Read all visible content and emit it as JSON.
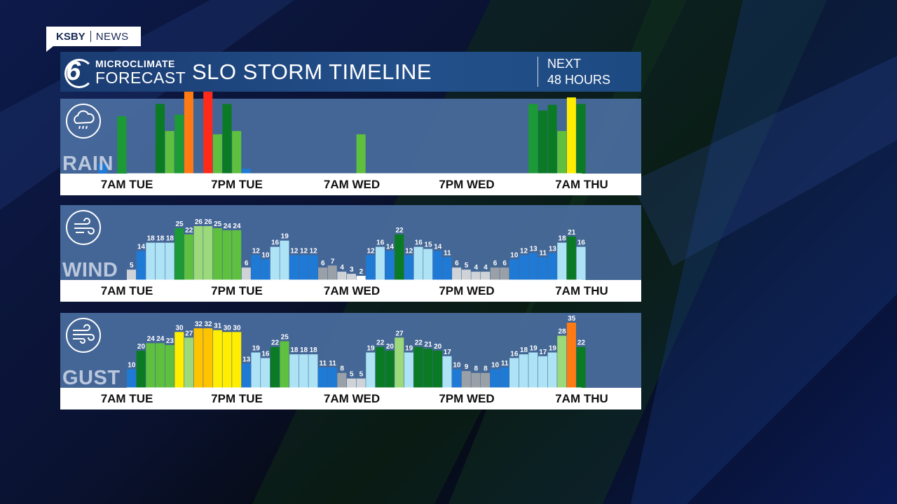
{
  "brand": {
    "station": "KSBY",
    "section": "NEWS"
  },
  "header": {
    "logo_line1": "MICROCLIMATE",
    "logo_line2": "FORECAST",
    "logo_number": "6",
    "title": "SLO STORM TIMELINE",
    "next_line1": "NEXT",
    "next_line2": "48 HOURS"
  },
  "time_axis": [
    "7AM TUE",
    "7PM TUE",
    "7AM WED",
    "7PM WED",
    "7AM THU"
  ],
  "colors": {
    "panel_bg": "#4a6ea0",
    "lightblue": "#aee3f5",
    "blue": "#1f7ad6",
    "gray": "#9aa0a8",
    "lightgray": "#cfd3d8",
    "white": "#ffffff",
    "darkgreen": "#0a7a25",
    "green": "#1c9a35",
    "midgreen": "#5fbf3e",
    "lightgreen": "#9bd97a",
    "yellow": "#ffee00",
    "gold": "#ffc400",
    "orange": "#ff7a12",
    "red": "#ff2a1a"
  },
  "chart_data": [
    {
      "name": "RAIN",
      "type": "bar",
      "icon": "rain-cloud-icon",
      "note": "no numeric labels shown; values are relative bar heights (0-100)",
      "values": [
        0,
        0,
        0,
        12,
        0,
        70,
        0,
        0,
        0,
        85,
        52,
        72,
        100,
        0,
        100,
        48,
        85,
        52,
        6,
        0,
        0,
        0,
        0,
        0,
        0,
        0,
        0,
        0,
        0,
        0,
        48,
        0,
        0,
        0,
        0,
        0,
        0,
        0,
        0,
        0,
        0,
        0,
        0,
        0,
        0,
        0,
        0,
        0,
        85,
        77,
        84,
        52,
        93,
        85
      ],
      "colors": [
        "darkgreen",
        "darkgreen",
        "darkgreen",
        "blue",
        "darkgreen",
        "green",
        "darkgreen",
        "darkgreen",
        "darkgreen",
        "darkgreen",
        "midgreen",
        "green",
        "orange",
        "darkgreen",
        "red",
        "midgreen",
        "darkgreen",
        "midgreen",
        "blue",
        "blue",
        "blue",
        "blue",
        "blue",
        "blue",
        "blue",
        "blue",
        "blue",
        "blue",
        "blue",
        "blue",
        "midgreen",
        "blue",
        "blue",
        "blue",
        "blue",
        "blue",
        "blue",
        "blue",
        "blue",
        "blue",
        "blue",
        "blue",
        "blue",
        "blue",
        "blue",
        "blue",
        "blue",
        "blue",
        "green",
        "darkgreen",
        "darkgreen",
        "midgreen",
        "yellow",
        "darkgreen"
      ]
    },
    {
      "name": "WIND",
      "type": "bar",
      "icon": "wind-icon",
      "values": [
        5,
        14,
        18,
        18,
        18,
        25,
        22,
        26,
        26,
        25,
        24,
        24,
        6,
        12,
        10,
        16,
        19,
        12,
        12,
        12,
        6,
        7,
        4,
        3,
        2,
        12,
        16,
        14,
        22,
        12,
        16,
        15,
        14,
        11,
        6,
        5,
        4,
        4,
        6,
        6,
        10,
        12,
        13,
        11,
        13,
        18,
        21,
        16
      ],
      "labels": [
        "5",
        "14",
        "18",
        "18",
        "18",
        "25",
        "22",
        "26",
        "26",
        "25",
        "24",
        "24",
        "6",
        "12",
        "10",
        "16",
        "19",
        "12",
        "12",
        "12",
        "6",
        "7",
        "4",
        "3",
        "2",
        "12",
        "16",
        "14",
        "22",
        "12",
        "16",
        "15",
        "14",
        "11",
        "6",
        "5",
        "4",
        "4",
        "6",
        "6",
        "10",
        "12",
        "13",
        "11",
        "13",
        "18",
        "21",
        "16"
      ],
      "colors": [
        "lightgray",
        "blue",
        "lightblue",
        "lightblue",
        "lightblue",
        "green",
        "midgreen",
        "lightgreen",
        "lightgreen",
        "midgreen",
        "midgreen",
        "midgreen",
        "lightgray",
        "blue",
        "blue",
        "lightblue",
        "lightblue",
        "blue",
        "blue",
        "blue",
        "gray",
        "gray",
        "lightgray",
        "lightgray",
        "white",
        "blue",
        "lightblue",
        "blue",
        "darkgreen",
        "blue",
        "lightblue",
        "lightblue",
        "blue",
        "blue",
        "lightgray",
        "lightgray",
        "lightgray",
        "lightgray",
        "gray",
        "gray",
        "blue",
        "blue",
        "blue",
        "blue",
        "blue",
        "lightblue",
        "darkgreen",
        "lightblue"
      ]
    },
    {
      "name": "GUST",
      "type": "bar",
      "icon": "gust-icon",
      "values": [
        10,
        20,
        24,
        24,
        23,
        30,
        27,
        32,
        32,
        31,
        30,
        30,
        13,
        19,
        16,
        22,
        25,
        18,
        18,
        18,
        11,
        11,
        8,
        5,
        5,
        19,
        22,
        20,
        27,
        19,
        22,
        21,
        20,
        17,
        10,
        9,
        8,
        8,
        10,
        11,
        16,
        18,
        19,
        17,
        19,
        28,
        35,
        22
      ],
      "labels": [
        "10",
        "20",
        "24",
        "24",
        "23",
        "30",
        "27",
        "32",
        "32",
        "31",
        "30",
        "30",
        "13",
        "19",
        "16",
        "22",
        "25",
        "18",
        "18",
        "18",
        "11",
        "11",
        "8",
        "5",
        "5",
        "19",
        "22",
        "20",
        "27",
        "19",
        "22",
        "21",
        "20",
        "17",
        "10",
        "9",
        "8",
        "8",
        "10",
        "11",
        "16",
        "18",
        "19",
        "17",
        "19",
        "28",
        "35",
        "22"
      ],
      "colors": [
        "blue",
        "darkgreen",
        "midgreen",
        "midgreen",
        "midgreen",
        "yellow",
        "lightgreen",
        "gold",
        "gold",
        "yellow",
        "yellow",
        "yellow",
        "blue",
        "lightblue",
        "lightblue",
        "darkgreen",
        "midgreen",
        "lightblue",
        "lightblue",
        "lightblue",
        "blue",
        "blue",
        "gray",
        "lightgray",
        "lightgray",
        "lightblue",
        "darkgreen",
        "darkgreen",
        "lightgreen",
        "lightblue",
        "darkgreen",
        "darkgreen",
        "darkgreen",
        "lightblue",
        "blue",
        "gray",
        "gray",
        "gray",
        "blue",
        "blue",
        "lightblue",
        "lightblue",
        "lightblue",
        "lightblue",
        "lightblue",
        "lightgreen",
        "orange",
        "darkgreen"
      ]
    }
  ]
}
